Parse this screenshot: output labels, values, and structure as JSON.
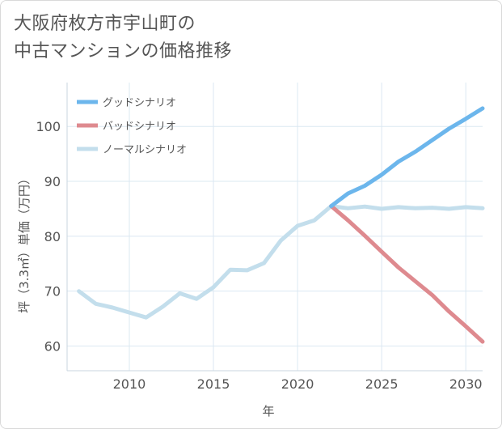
{
  "title_lines": [
    "大阪府枚方市宇山町の",
    "中古マンションの価格推移"
  ],
  "chart_data": {
    "type": "line",
    "xlabel": "年",
    "ylabel": "坪（3.3㎡）単価（万円）",
    "xlim": [
      2006.3,
      2031
    ],
    "ylim": [
      55.5,
      108
    ],
    "xticks": [
      2010,
      2015,
      2020,
      2025,
      2030
    ],
    "yticks": [
      60,
      70,
      80,
      90,
      100
    ],
    "grid": true,
    "legend_position": "top-left",
    "series": [
      {
        "name": "グッドシナリオ",
        "color": "#6cb6ec",
        "x": [
          2022,
          2023,
          2024,
          2025,
          2026,
          2027,
          2028,
          2029,
          2030,
          2031
        ],
        "y": [
          85.5,
          87.8,
          89.2,
          91.2,
          93.6,
          95.4,
          97.5,
          99.6,
          101.4,
          103.3
        ]
      },
      {
        "name": "バッドシナリオ",
        "color": "#de8a8f",
        "x": [
          2022,
          2023,
          2024,
          2025,
          2026,
          2027,
          2028,
          2029,
          2030,
          2031
        ],
        "y": [
          85.5,
          82.9,
          80.1,
          77.2,
          74.3,
          71.8,
          69.3,
          66.3,
          63.6,
          60.8
        ]
      },
      {
        "name": "ノーマルシナリオ",
        "color": "#c3deec",
        "x": [
          2007,
          2008,
          2009,
          2010,
          2011,
          2012,
          2013,
          2014,
          2015,
          2016,
          2017,
          2018,
          2019,
          2020,
          2021,
          2022,
          2023,
          2024,
          2025,
          2026,
          2027,
          2028,
          2029,
          2030,
          2031
        ],
        "y": [
          70.0,
          67.7,
          67.0,
          66.1,
          65.2,
          67.2,
          69.6,
          68.6,
          70.7,
          73.9,
          73.8,
          75.1,
          79.2,
          81.9,
          82.9,
          85.5,
          85.1,
          85.4,
          85.0,
          85.3,
          85.1,
          85.2,
          85.0,
          85.3,
          85.1
        ]
      }
    ]
  }
}
